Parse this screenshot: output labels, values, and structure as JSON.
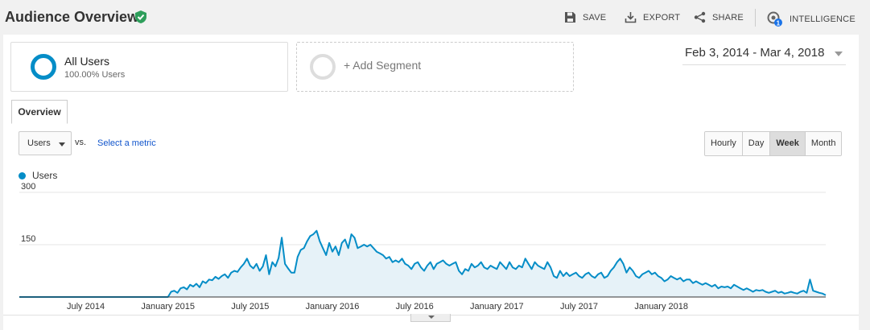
{
  "header": {
    "title": "Audience Overview",
    "tools": {
      "save": "SAVE",
      "export": "EXPORT",
      "share": "SHARE",
      "intelligence": "INTELLIGENCE",
      "intelligence_badge": "1"
    }
  },
  "segments": {
    "all_users": {
      "name": "All Users",
      "percent": "100.00% Users"
    },
    "add_segment": "+ Add Segment"
  },
  "date_range": "Feb 3, 2014 - Mar 4, 2018",
  "tabs": [
    {
      "label": "Overview"
    }
  ],
  "controls": {
    "metric": "Users",
    "vs": "vs.",
    "select_metric": "Select a metric",
    "granularity": [
      "Hourly",
      "Day",
      "Week",
      "Month"
    ],
    "active_granularity": "Week"
  },
  "legend": {
    "label": "Users"
  },
  "colors": {
    "line": "#058dc7",
    "fill": "#e6f2f8",
    "accent_green": "#2e9e5b"
  },
  "chart_data": {
    "type": "area",
    "series": [
      {
        "name": "Users"
      }
    ],
    "y_ticks": [
      "300",
      "150"
    ],
    "ylim": [
      0,
      300
    ],
    "x_ticks": [
      "July 2014",
      "January 2015",
      "July 2015",
      "January 2016",
      "July 2016",
      "January 2017",
      "July 2017",
      "January 2018"
    ],
    "x_tick_week_index": [
      21,
      47,
      73,
      99,
      125,
      151,
      177,
      203
    ],
    "values": [
      0,
      0,
      0,
      0,
      0,
      0,
      0,
      0,
      0,
      0,
      0,
      0,
      0,
      0,
      0,
      0,
      0,
      0,
      0,
      0,
      0,
      0,
      0,
      0,
      0,
      0,
      0,
      0,
      0,
      0,
      0,
      0,
      0,
      0,
      0,
      0,
      0,
      0,
      0,
      0,
      0,
      0,
      0,
      0,
      0,
      0,
      0,
      0,
      15,
      18,
      12,
      25,
      28,
      22,
      35,
      30,
      38,
      28,
      45,
      40,
      50,
      48,
      58,
      52,
      60,
      65,
      55,
      70,
      75,
      72,
      85,
      95,
      110,
      90,
      82,
      95,
      75,
      88,
      120,
      65,
      100,
      88,
      112,
      170,
      95,
      82,
      70,
      70,
      115,
      135,
      140,
      160,
      175,
      180,
      190,
      160,
      140,
      120,
      155,
      130,
      145,
      120,
      155,
      165,
      140,
      180,
      170,
      140,
      145,
      150,
      145,
      150,
      140,
      130,
      125,
      120,
      110,
      115,
      100,
      105,
      100,
      110,
      95,
      90,
      80,
      95,
      100,
      85,
      75,
      90,
      100,
      80,
      95,
      100,
      105,
      95,
      90,
      95,
      100,
      75,
      65,
      80,
      75,
      95,
      85,
      90,
      100,
      85,
      80,
      90,
      85,
      80,
      100,
      90,
      80,
      100,
      85,
      80,
      90,
      85,
      110,
      95,
      80,
      100,
      90,
      85,
      80,
      100,
      85,
      60,
      55,
      75,
      60,
      70,
      60,
      65,
      70,
      60,
      55,
      65,
      70,
      60,
      55,
      65,
      70,
      55,
      60,
      75,
      85,
      100,
      110,
      95,
      70,
      85,
      75,
      60,
      55,
      65,
      70,
      75,
      65,
      70,
      60,
      55,
      45,
      50,
      60,
      55,
      50,
      55,
      45,
      50,
      50,
      40,
      45,
      40,
      35,
      40,
      35,
      30,
      35,
      25,
      30,
      28,
      30,
      25,
      35,
      30,
      25,
      20,
      25,
      20,
      15,
      20,
      18,
      20,
      15,
      12,
      15,
      18,
      12,
      15,
      10,
      12,
      15,
      12,
      10,
      15,
      18,
      12,
      50,
      18,
      15,
      12,
      10,
      5
    ]
  }
}
